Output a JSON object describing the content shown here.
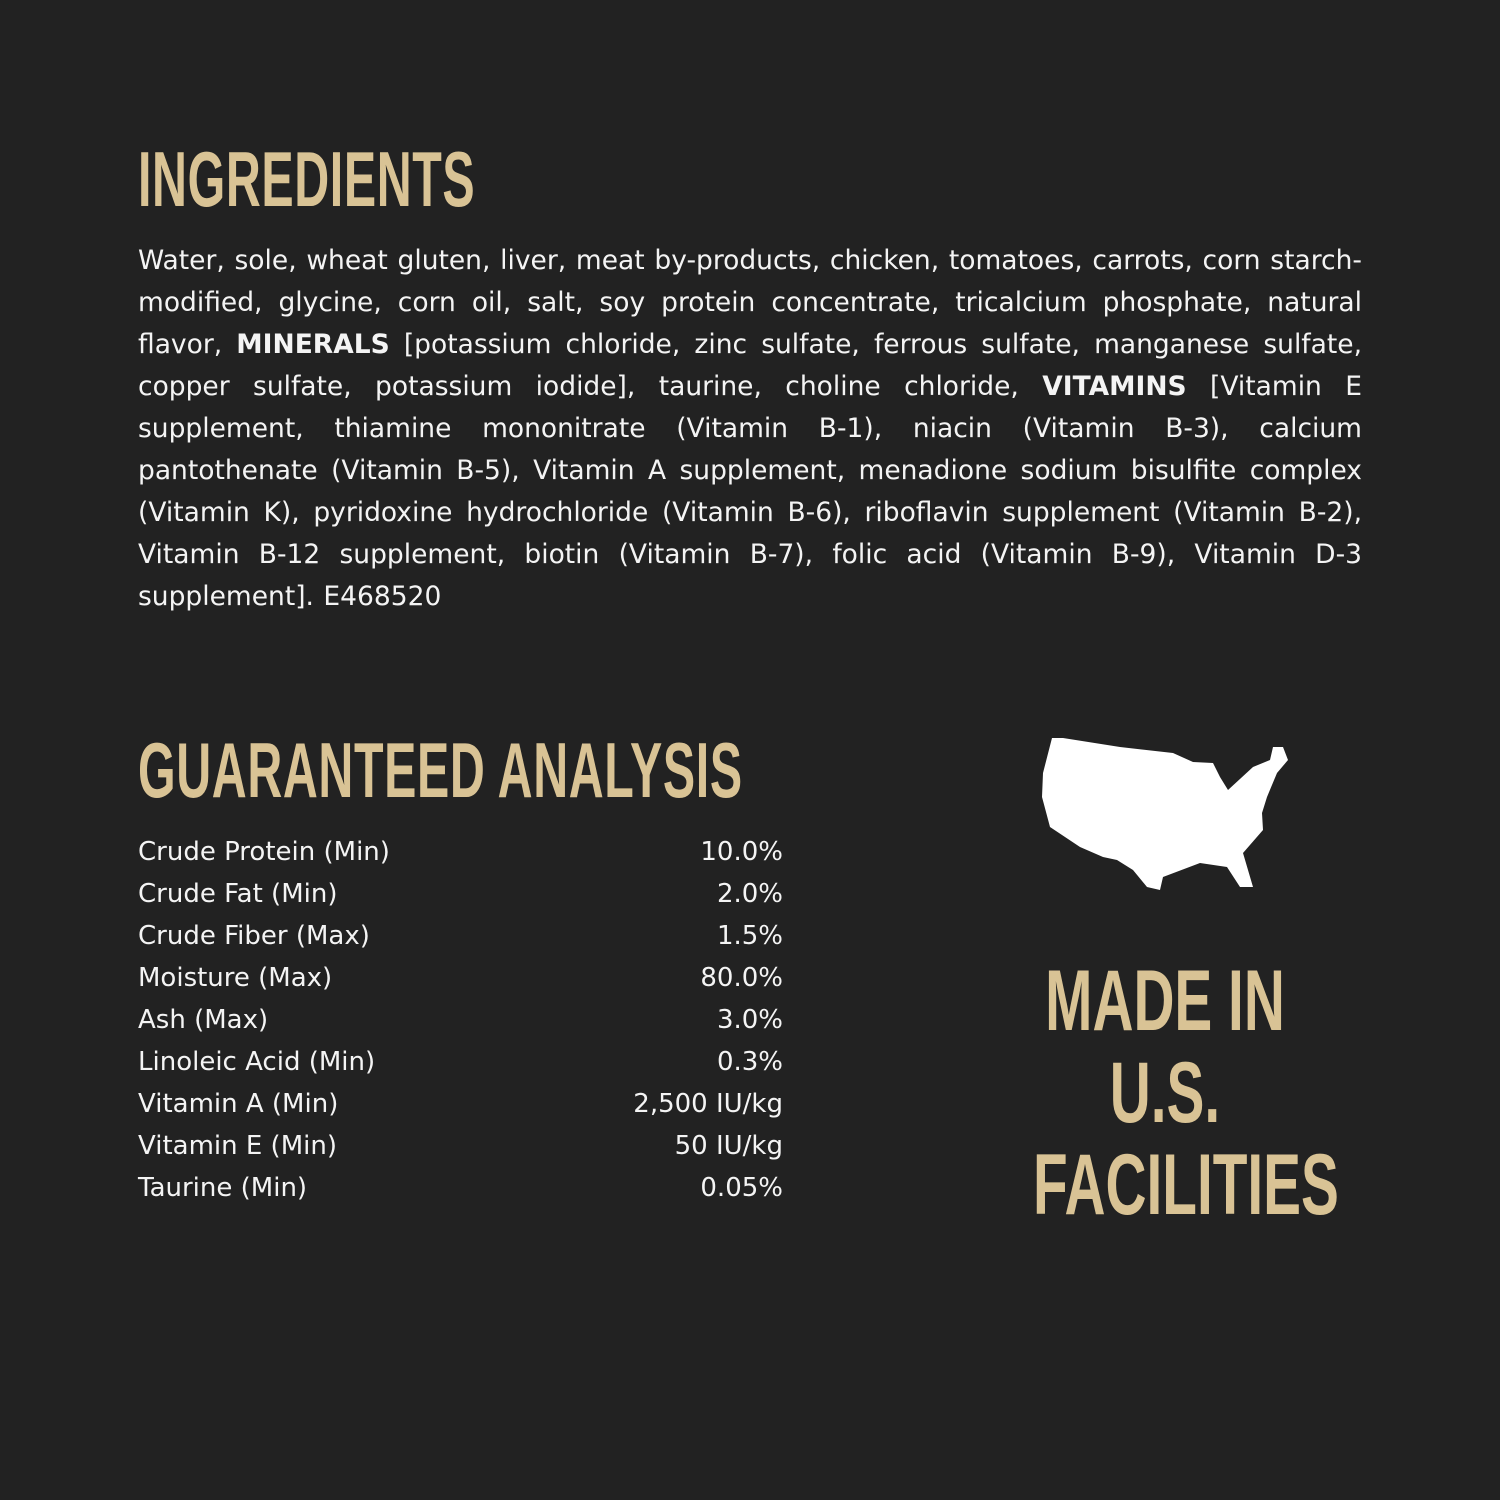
{
  "ingredients": {
    "title": "INGREDIENTS",
    "segments": [
      "Water, sole, wheat gluten, liver, meat by-products, chicken, tomatoes, carrots, corn starch-modified, glycine, corn oil, salt, soy protein concentrate, tricalcium phosphate, natural flavor, ",
      "MINERALS",
      " [potassium chloride, zinc sulfate, ferrous sulfate, manganese sulfate, copper sulfate, potassium iodide], taurine, choline chloride, ",
      "VITAMINS",
      " [Vitamin E supplement, thiamine mononitrate (Vitamin B-1), niacin (Vitamin B-3), calcium pantothenate (Vitamin B-5), Vitamin A supplement, menadione sodium bisulfite complex (Vitamin K), pyridoxine hydrochloride (Vitamin B-6), riboflavin supplement (Vitamin B-2), Vitamin B-12 supplement, biotin (Vitamin B-7), folic acid (Vitamin B-9), Vitamin D-3 supplement]. E468520"
    ]
  },
  "analysis": {
    "title": "GUARANTEED ANALYSIS",
    "rows": [
      {
        "label": "Crude Protein (Min)",
        "value": "10.0%"
      },
      {
        "label": "Crude Fat (Min)",
        "value": "2.0%"
      },
      {
        "label": "Crude Fiber (Max)",
        "value": "1.5%"
      },
      {
        "label": "Moisture (Max)",
        "value": "80.0%"
      },
      {
        "label": "Ash (Max)",
        "value": "3.0%"
      },
      {
        "label": "Linoleic Acid (Min)",
        "value": "0.3%"
      },
      {
        "label": "Vitamin A (Min)",
        "value": "2,500 IU/kg"
      },
      {
        "label": "Vitamin E (Min)",
        "value": "50 IU/kg"
      },
      {
        "label": "Taurine (Min)",
        "value": "0.05%"
      }
    ]
  },
  "badge": {
    "icon": "usa-map-icon",
    "lines": [
      "MADE IN",
      "U.S.",
      "FACILITIES"
    ]
  },
  "colors": {
    "background": "#222222",
    "accent": "#d9c395",
    "text": "#f4f4f4"
  }
}
